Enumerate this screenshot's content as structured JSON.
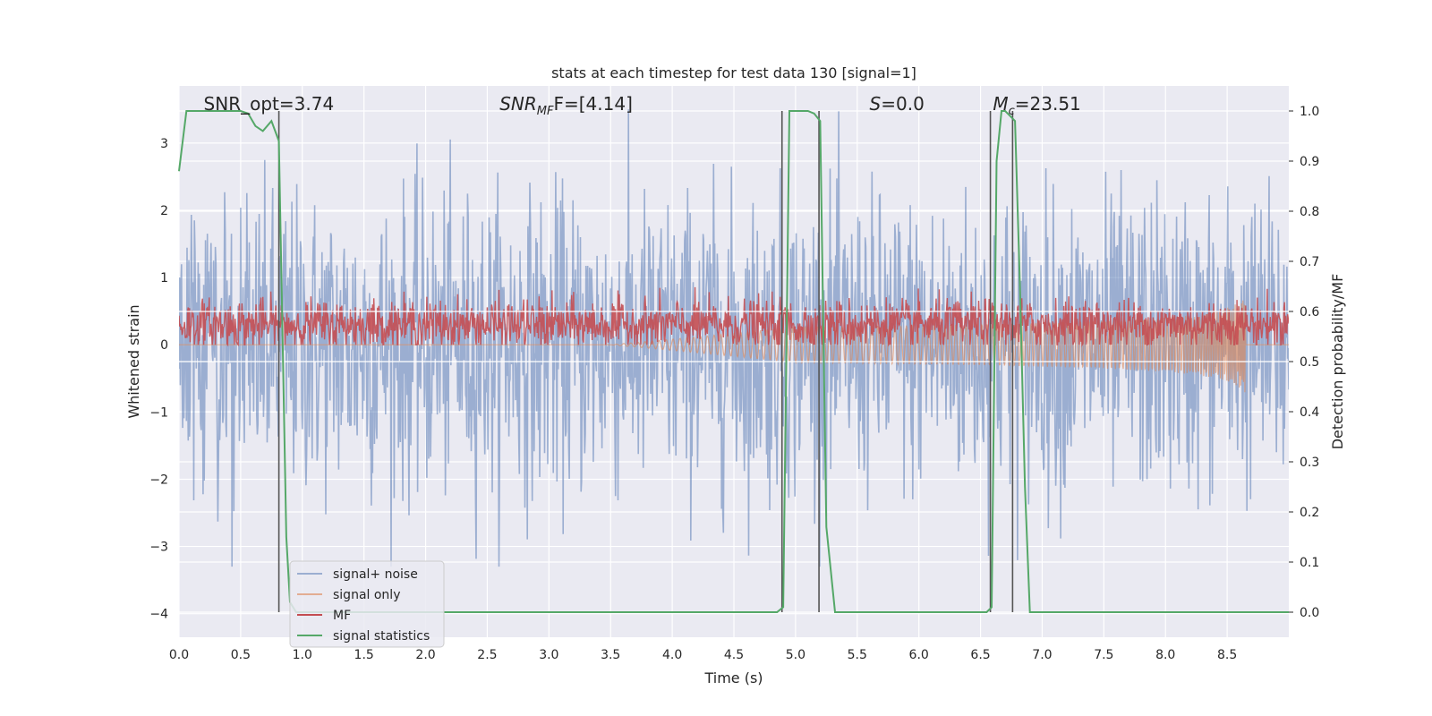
{
  "chart_data": {
    "type": "line",
    "title": "stats at each timestep for test data 130 [signal=1]",
    "xlabel": "Time (s)",
    "ylabel": "Whitened strain",
    "y2label": "Detection probability/MF",
    "xlim": [
      0.0,
      9.0
    ],
    "ylim": [
      -4.35,
      3.85
    ],
    "y2lim": [
      -0.05,
      1.05
    ],
    "xticks": [
      "0.0",
      "0.5",
      "1.0",
      "1.5",
      "2.0",
      "2.5",
      "3.0",
      "3.5",
      "4.0",
      "4.5",
      "5.0",
      "5.5",
      "6.0",
      "6.5",
      "7.0",
      "7.5",
      "8.0",
      "8.5"
    ],
    "yticks": [
      "−4",
      "−3",
      "−2",
      "−1",
      "0",
      "1",
      "2",
      "3"
    ],
    "y2ticks": [
      "0.0",
      "0.1",
      "0.2",
      "0.3",
      "0.4",
      "0.5",
      "0.6",
      "0.7",
      "0.8",
      "0.9",
      "1.0"
    ],
    "grid": true,
    "legend_position": "bottom-left",
    "annotations": [
      {
        "text": "SNR_opt=3.74",
        "x": 0.2
      },
      {
        "text": "SNR",
        "sub": "MF",
        "suffix": "F=[4.14]",
        "x": 2.6
      },
      {
        "text": "S",
        "suffix": "=0.0",
        "x": 5.6
      },
      {
        "text": "M",
        "sub": "c",
        "suffix": "=23.51",
        "x": 6.6
      }
    ],
    "series": [
      {
        "name": "signal+ noise",
        "color": "#4c72b0",
        "kind": "noise",
        "amplitude": 1.1,
        "peak_range": [
          -3.3,
          3.5
        ]
      },
      {
        "name": "signal only",
        "color": "#dd8452",
        "kind": "chirp",
        "start_x": 3.5,
        "end_x": 8.65,
        "final_amplitude": 0.75
      },
      {
        "name": "MF",
        "color": "#c44e52",
        "kind": "band",
        "center": 0.3,
        "amplitude": 0.25,
        "peak": 0.95
      },
      {
        "name": "signal statistics",
        "color": "#55a868",
        "x": [
          0.0,
          0.06,
          0.25,
          0.5,
          0.56,
          0.62,
          0.68,
          0.75,
          0.81,
          0.84,
          0.87,
          0.9,
          0.95,
          1.0,
          4.85,
          4.9,
          4.95,
          5.1,
          5.15,
          5.2,
          5.25,
          5.32,
          5.4,
          6.55,
          6.59,
          6.63,
          6.67,
          6.7,
          6.74,
          6.78,
          6.82,
          6.86,
          6.9,
          9.0
        ],
        "y": [
          0.88,
          1.0,
          1.0,
          1.0,
          0.995,
          0.97,
          0.96,
          0.98,
          0.94,
          0.55,
          0.15,
          0.02,
          0.0,
          0.0,
          0.0,
          0.01,
          1.0,
          1.0,
          0.995,
          0.98,
          0.17,
          0.0,
          0.0,
          0.0,
          0.01,
          0.9,
          1.0,
          1.0,
          0.99,
          0.98,
          0.65,
          0.25,
          0.0,
          0.0
        ]
      }
    ],
    "vlines": [
      0.81,
      4.89,
      5.19,
      6.58,
      6.76
    ],
    "hlines_y2": [
      0.5,
      0.6
    ]
  }
}
